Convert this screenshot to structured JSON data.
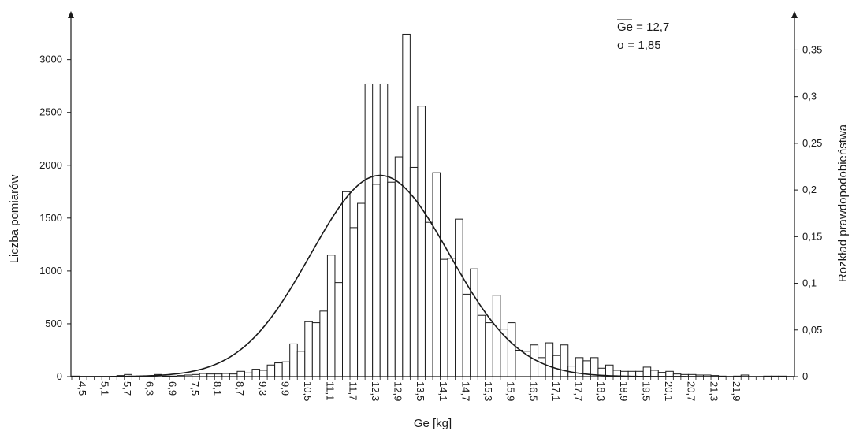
{
  "chart_data": {
    "type": "bar",
    "xlabel": "Ge [kg]",
    "ylabel": "Liczba pomiarów",
    "y2label": "Rozkład prawdopodobieństwa",
    "annotation": {
      "mean_label": "Ge",
      "mean_value": " = 12,7",
      "sigma": "σ = 1,85"
    },
    "x_start": 4.5,
    "bin_width": 0.2,
    "x_tick_labels": [
      "4,5",
      "5,1",
      "5,7",
      "6,3",
      "6,9",
      "7,5",
      "8,1",
      "8,7",
      "9,3",
      "9,9",
      "10,5",
      "11,1",
      "11,7",
      "12,3",
      "12,9",
      "13,5",
      "14,1",
      "14,7",
      "15,3",
      "15,9",
      "16,5",
      "17,1",
      "17,7",
      "18,3",
      "18,9",
      "19,5",
      "20,1",
      "20,7",
      "21,3",
      "21,9"
    ],
    "ylim": [
      0,
      3400
    ],
    "y_ticks": [
      0,
      500,
      1000,
      1500,
      2000,
      2500,
      3000
    ],
    "y2lim": [
      0,
      0.385
    ],
    "y2_tick_labels": [
      "0",
      "0,05",
      "0,1",
      "0,15",
      "0,2",
      "0,25",
      "0,3",
      "0,35"
    ],
    "y2_tick_values": [
      0,
      0.05,
      0.1,
      0.15,
      0.2,
      0.25,
      0.3,
      0.35
    ],
    "values": [
      5,
      0,
      0,
      0,
      0,
      0,
      10,
      20,
      0,
      0,
      5,
      20,
      5,
      5,
      10,
      15,
      20,
      30,
      25,
      25,
      30,
      25,
      50,
      35,
      70,
      60,
      110,
      130,
      140,
      310,
      240,
      520,
      510,
      620,
      1150,
      890,
      1750,
      1410,
      1640,
      2770,
      1820,
      2770,
      1840,
      2080,
      3240,
      1980,
      2560,
      1460,
      1930,
      1110,
      1120,
      1490,
      780,
      1020,
      580,
      510,
      770,
      450,
      510,
      250,
      240,
      300,
      180,
      320,
      200,
      300,
      100,
      180,
      150,
      180,
      80,
      110,
      60,
      50,
      50,
      50,
      90,
      60,
      40,
      50,
      25,
      20,
      20,
      15,
      15,
      10,
      5,
      0,
      5,
      15,
      0,
      0,
      5,
      5,
      5,
      0
    ],
    "normal_curve": {
      "mean": 12.7,
      "sigma": 1.85
    }
  }
}
